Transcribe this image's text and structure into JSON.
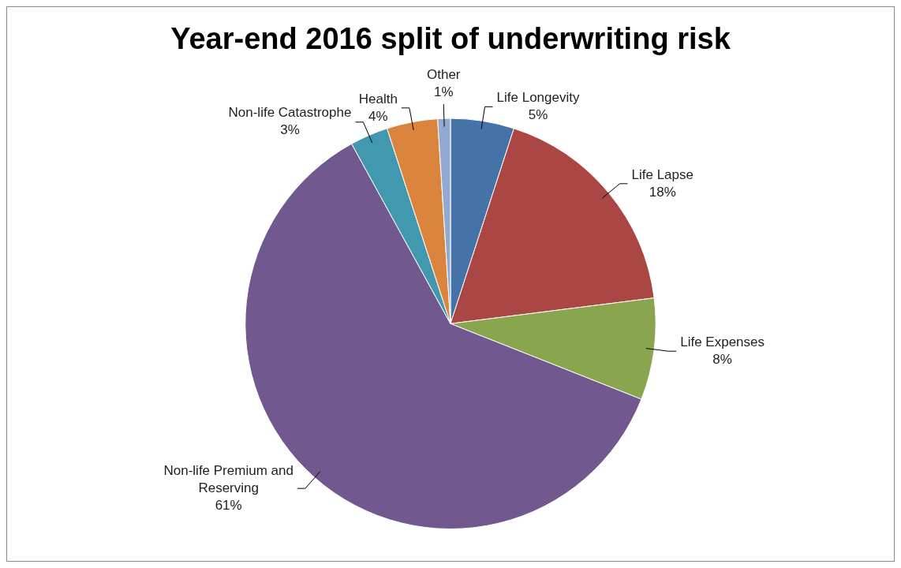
{
  "chart_data": {
    "type": "pie",
    "title": "Year-end 2016 split of underwriting risk",
    "categories": [
      "Life Longevity",
      "Life Lapse",
      "Life Expenses",
      "Non-life Premium and Reserving",
      "Non-life Catastrophe",
      "Health",
      "Other"
    ],
    "values": [
      5,
      18,
      8,
      61,
      3,
      4,
      1
    ],
    "value_labels": [
      "5%",
      "18%",
      "8%",
      "61%",
      "3%",
      "4%",
      "1%"
    ],
    "colors": [
      "#4572a7",
      "#aa4643",
      "#89a54e",
      "#71588f",
      "#4198af",
      "#db843d",
      "#93a9cf"
    ],
    "legend": false
  }
}
